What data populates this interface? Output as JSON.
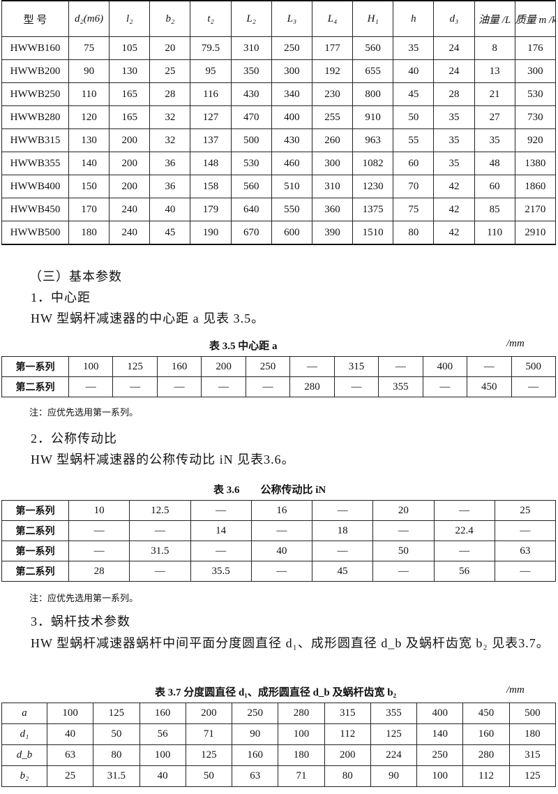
{
  "table1": {
    "header": [
      "型 号",
      "d₂(m6)",
      "l₂",
      "b₂",
      "t₂",
      "L₂",
      "L₃",
      "L₄",
      "H₁",
      "h",
      "d₃",
      "油量 /L",
      "质量 m /kg"
    ],
    "rows": [
      [
        "HWWB160",
        "75",
        "105",
        "20",
        "79.5",
        "310",
        "250",
        "177",
        "560",
        "35",
        "24",
        "8",
        "176"
      ],
      [
        "HWWB200",
        "90",
        "130",
        "25",
        "95",
        "350",
        "300",
        "192",
        "655",
        "40",
        "24",
        "13",
        "300"
      ],
      [
        "HWWB250",
        "110",
        "165",
        "28",
        "116",
        "430",
        "340",
        "230",
        "800",
        "45",
        "28",
        "21",
        "530"
      ],
      [
        "HWWB280",
        "120",
        "165",
        "32",
        "127",
        "470",
        "400",
        "255",
        "910",
        "50",
        "35",
        "27",
        "730"
      ],
      [
        "HWWB315",
        "130",
        "200",
        "32",
        "137",
        "500",
        "430",
        "260",
        "963",
        "55",
        "35",
        "35",
        "920"
      ],
      [
        "HWWB355",
        "140",
        "200",
        "36",
        "148",
        "530",
        "460",
        "300",
        "1082",
        "60",
        "35",
        "48",
        "1380"
      ],
      [
        "HWWB400",
        "150",
        "200",
        "36",
        "158",
        "560",
        "510",
        "310",
        "1230",
        "70",
        "42",
        "60",
        "1860"
      ],
      [
        "HWWB450",
        "170",
        "240",
        "40",
        "179",
        "640",
        "550",
        "360",
        "1375",
        "75",
        "42",
        "85",
        "2170"
      ],
      [
        "HWWB500",
        "180",
        "240",
        "45",
        "190",
        "670",
        "600",
        "390",
        "1510",
        "80",
        "42",
        "110",
        "2910"
      ]
    ]
  },
  "section": {
    "heading": "（三）基本参数"
  },
  "sub1": {
    "heading": "1．中心距",
    "text": "HW 型蜗杆减速器的中心距 a 见表 3.5。"
  },
  "table35": {
    "caption": "表 3.5 中心距 a",
    "unit": "/mm",
    "rows": [
      [
        "第一系列",
        "100",
        "125",
        "160",
        "200",
        "250",
        "—",
        "315",
        "—",
        "400",
        "—",
        "500"
      ],
      [
        "第二系列",
        "—",
        "—",
        "—",
        "—",
        "—",
        "280",
        "—",
        "355",
        "—",
        "450",
        "—"
      ]
    ],
    "note": "注：应优先选用第一系列。"
  },
  "sub2": {
    "heading": "2．公称传动比",
    "text": "HW 型蜗杆减速器的公称传动比 iN 见表3.6。"
  },
  "table36": {
    "caption": "表 3.6　　公称传动比 iN",
    "rows": [
      [
        "第一系列",
        "10",
        "12.5",
        "—",
        "16",
        "—",
        "20",
        "—",
        "25"
      ],
      [
        "第二系列",
        "—",
        "—",
        "14",
        "—",
        "18",
        "—",
        "22.4",
        "—"
      ],
      [
        "第一系列",
        "—",
        "31.5",
        "—",
        "40",
        "—",
        "50",
        "—",
        "63"
      ],
      [
        "第二系列",
        "28",
        "—",
        "35.5",
        "—",
        "45",
        "—",
        "56",
        "—"
      ]
    ],
    "note": "注：应优先选用第一系列。"
  },
  "sub3": {
    "heading": "3．蜗杆技术参数",
    "text": "HW 型蜗杆减速器蜗杆中间平面分度圆直径 d₁、成形圆直径 d_b 及蜗杆齿宽 b₂ 见表3.7。"
  },
  "table37": {
    "caption": "表 3.7 分度圆直径 d₁、成形圆直径 d_b 及蜗杆齿宽 b₂",
    "unit": "/mm",
    "rows": [
      [
        "a",
        "100",
        "125",
        "160",
        "200",
        "250",
        "280",
        "315",
        "355",
        "400",
        "450",
        "500"
      ],
      [
        "d₁",
        "40",
        "50",
        "56",
        "71",
        "90",
        "100",
        "112",
        "125",
        "140",
        "160",
        "180"
      ],
      [
        "d_b",
        "63",
        "80",
        "100",
        "125",
        "160",
        "180",
        "200",
        "224",
        "250",
        "280",
        "315"
      ],
      [
        "b₂",
        "25",
        "31.5",
        "40",
        "50",
        "63",
        "71",
        "80",
        "90",
        "100",
        "112",
        "125"
      ]
    ]
  }
}
